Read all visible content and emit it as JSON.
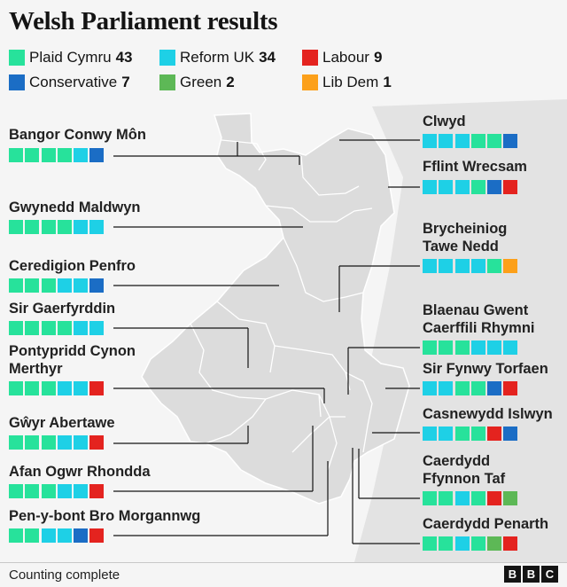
{
  "title": "Welsh Parliament results",
  "colors": {
    "PC": "#27e29b",
    "REF": "#1ed0e6",
    "LAB": "#e4231f",
    "CON": "#1b6dc5",
    "GRN": "#5db856",
    "LD": "#fca01a"
  },
  "legend": [
    {
      "key": "PC",
      "label": "Plaid Cymru",
      "seats": "43"
    },
    {
      "key": "REF",
      "label": "Reform UK",
      "seats": "34"
    },
    {
      "key": "LAB",
      "label": "Labour",
      "seats": "9"
    },
    {
      "key": "CON",
      "label": "Conservative",
      "seats": "7"
    },
    {
      "key": "GRN",
      "label": "Green",
      "seats": "2"
    },
    {
      "key": "LD",
      "label": "Lib Dem",
      "seats": "1"
    }
  ],
  "chart_data": {
    "type": "table",
    "title": "Welsh Parliament results",
    "totals": {
      "Plaid Cymru": 43,
      "Reform UK": 34,
      "Labour": 9,
      "Conservative": 7,
      "Green": 2,
      "Lib Dem": 1
    },
    "constituencies": [
      {
        "name": "Bangor Conwy Môn",
        "seats": [
          "PC",
          "PC",
          "PC",
          "PC",
          "REF",
          "CON"
        ]
      },
      {
        "name": "Gwynedd Maldwyn",
        "seats": [
          "PC",
          "PC",
          "PC",
          "PC",
          "REF",
          "REF"
        ]
      },
      {
        "name": "Ceredigion Penfro",
        "seats": [
          "PC",
          "PC",
          "PC",
          "REF",
          "REF",
          "CON"
        ]
      },
      {
        "name": "Sir Gaerfyrddin",
        "seats": [
          "PC",
          "PC",
          "PC",
          "PC",
          "REF",
          "REF"
        ]
      },
      {
        "name": "Pontypridd Cynon Merthyr",
        "seats": [
          "PC",
          "PC",
          "PC",
          "REF",
          "REF",
          "LAB"
        ]
      },
      {
        "name": "Gŵyr Abertawe",
        "seats": [
          "PC",
          "PC",
          "PC",
          "REF",
          "REF",
          "LAB"
        ]
      },
      {
        "name": "Afan Ogwr Rhondda",
        "seats": [
          "PC",
          "PC",
          "PC",
          "REF",
          "REF",
          "LAB"
        ]
      },
      {
        "name": "Pen-y-bont Bro Morgannwg",
        "seats": [
          "PC",
          "PC",
          "REF",
          "REF",
          "CON",
          "LAB"
        ]
      },
      {
        "name": "Clwyd",
        "seats": [
          "REF",
          "REF",
          "REF",
          "PC",
          "PC",
          "CON"
        ]
      },
      {
        "name": "Fflint Wrecsam",
        "seats": [
          "REF",
          "REF",
          "REF",
          "PC",
          "CON",
          "LAB"
        ]
      },
      {
        "name": "Brycheiniog Tawe Nedd",
        "seats": [
          "REF",
          "REF",
          "REF",
          "REF",
          "PC",
          "LD"
        ]
      },
      {
        "name": "Blaenau Gwent Caerffili Rhymni",
        "seats": [
          "PC",
          "PC",
          "PC",
          "REF",
          "REF",
          "REF"
        ]
      },
      {
        "name": "Sir Fynwy Torfaen",
        "seats": [
          "REF",
          "REF",
          "PC",
          "PC",
          "CON",
          "LAB"
        ]
      },
      {
        "name": "Casnewydd Islwyn",
        "seats": [
          "REF",
          "REF",
          "PC",
          "PC",
          "LAB",
          "CON"
        ]
      },
      {
        "name": "Caerdydd Ffynnon Taf",
        "seats": [
          "PC",
          "PC",
          "REF",
          "PC",
          "LAB",
          "GRN"
        ]
      },
      {
        "name": "Caerdydd Penarth",
        "seats": [
          "PC",
          "PC",
          "REF",
          "PC",
          "GRN",
          "LAB"
        ]
      }
    ]
  },
  "footer": {
    "status": "Counting complete",
    "brand": [
      "B",
      "B",
      "C"
    ]
  }
}
